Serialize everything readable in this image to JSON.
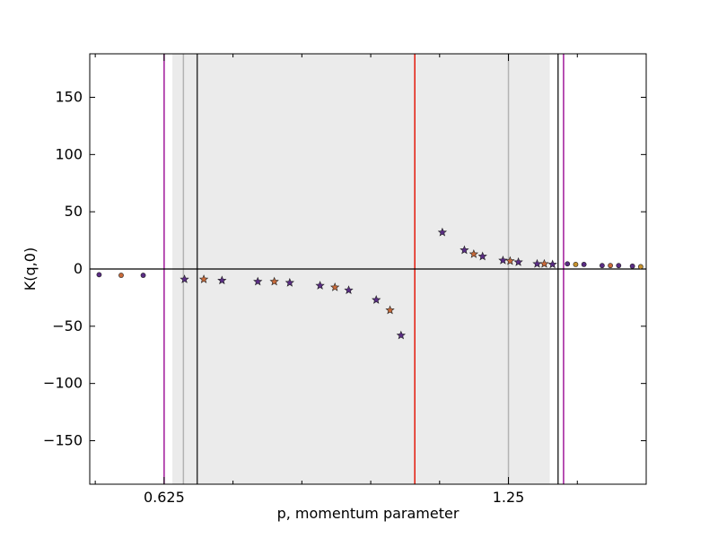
{
  "chart_data": {
    "type": "scatter",
    "xlabel": "p, momentum parameter",
    "ylabel": "K(q,0)",
    "xlim": [
      0.49,
      1.5
    ],
    "ylim": [
      -188,
      188
    ],
    "xticks": [
      {
        "value": 0.625,
        "label": "0.625"
      },
      {
        "value": 1.25,
        "label": "1.25"
      }
    ],
    "xminorticks": [
      0.5,
      0.75,
      0.875,
      1.0,
      1.125,
      1.375
    ],
    "yticks": [
      -150,
      -100,
      -50,
      0,
      50,
      100,
      150
    ],
    "ytick_labels": [
      "−150",
      "−100",
      "−50",
      "0",
      "50",
      "100",
      "150"
    ],
    "grid": false,
    "legend": "none",
    "shaded_region": {
      "x_start": 0.64,
      "x_end": 1.325,
      "color": "#ebebeb"
    },
    "hlines": [
      {
        "y": 0,
        "color": "#000000"
      }
    ],
    "vlines": [
      {
        "x": 0.625,
        "color": "#a0199a"
      },
      {
        "x": 0.66,
        "color": "#b3b3b3"
      },
      {
        "x": 0.685,
        "color": "#333333"
      },
      {
        "x": 1.08,
        "color": "#e3170a"
      },
      {
        "x": 1.25,
        "color": "#b3b3b3"
      },
      {
        "x": 1.34,
        "color": "#333333"
      },
      {
        "x": 1.35,
        "color": "#a0199a"
      }
    ],
    "series": [
      {
        "marker": "circle",
        "points": [
          {
            "x": 0.507,
            "y": -5,
            "color": "#5a2d84"
          },
          {
            "x": 0.547,
            "y": -5.5,
            "color": "#c86a3a"
          },
          {
            "x": 0.587,
            "y": -5.5,
            "color": "#5a2d84"
          },
          {
            "x": 1.357,
            "y": 4.5,
            "color": "#5a2d84"
          },
          {
            "x": 1.372,
            "y": 4,
            "color": "#c8932e"
          },
          {
            "x": 1.387,
            "y": 4,
            "color": "#5a2d84"
          },
          {
            "x": 1.42,
            "y": 3,
            "color": "#5a2d84"
          },
          {
            "x": 1.435,
            "y": 3,
            "color": "#c86a3a"
          },
          {
            "x": 1.45,
            "y": 3,
            "color": "#5a2d84"
          },
          {
            "x": 1.475,
            "y": 2.5,
            "color": "#5a2d84"
          },
          {
            "x": 1.49,
            "y": 2,
            "color": "#c8932e"
          }
        ]
      },
      {
        "marker": "star",
        "points": [
          {
            "x": 0.662,
            "y": -9,
            "color": "#5a2d84"
          },
          {
            "x": 0.697,
            "y": -9,
            "color": "#c86a3a"
          },
          {
            "x": 0.73,
            "y": -10,
            "color": "#5a2d84"
          },
          {
            "x": 0.795,
            "y": -11,
            "color": "#5a2d84"
          },
          {
            "x": 0.825,
            "y": -11,
            "color": "#c86a3a"
          },
          {
            "x": 0.853,
            "y": -12,
            "color": "#5a2d84"
          },
          {
            "x": 0.908,
            "y": -14.5,
            "color": "#5a2d84"
          },
          {
            "x": 0.935,
            "y": -16,
            "color": "#c86a3a"
          },
          {
            "x": 0.96,
            "y": -18.5,
            "color": "#5a2d84"
          },
          {
            "x": 1.01,
            "y": -27,
            "color": "#5a2d84"
          },
          {
            "x": 1.035,
            "y": -36,
            "color": "#c86a3a"
          },
          {
            "x": 1.055,
            "y": -58,
            "color": "#5a2d84"
          },
          {
            "x": 1.13,
            "y": 32,
            "color": "#5a2d84"
          },
          {
            "x": 1.17,
            "y": 16.5,
            "color": "#5a2d84"
          },
          {
            "x": 1.187,
            "y": 13,
            "color": "#c86a3a"
          },
          {
            "x": 1.203,
            "y": 11,
            "color": "#5a2d84"
          },
          {
            "x": 1.24,
            "y": 7.5,
            "color": "#5a2d84"
          },
          {
            "x": 1.253,
            "y": 7,
            "color": "#c86a3a"
          },
          {
            "x": 1.268,
            "y": 6,
            "color": "#5a2d84"
          },
          {
            "x": 1.302,
            "y": 4.5,
            "color": "#5a2d84"
          },
          {
            "x": 1.315,
            "y": 4.5,
            "color": "#c86a3a"
          },
          {
            "x": 1.33,
            "y": 4,
            "color": "#5a2d84"
          }
        ]
      }
    ]
  }
}
